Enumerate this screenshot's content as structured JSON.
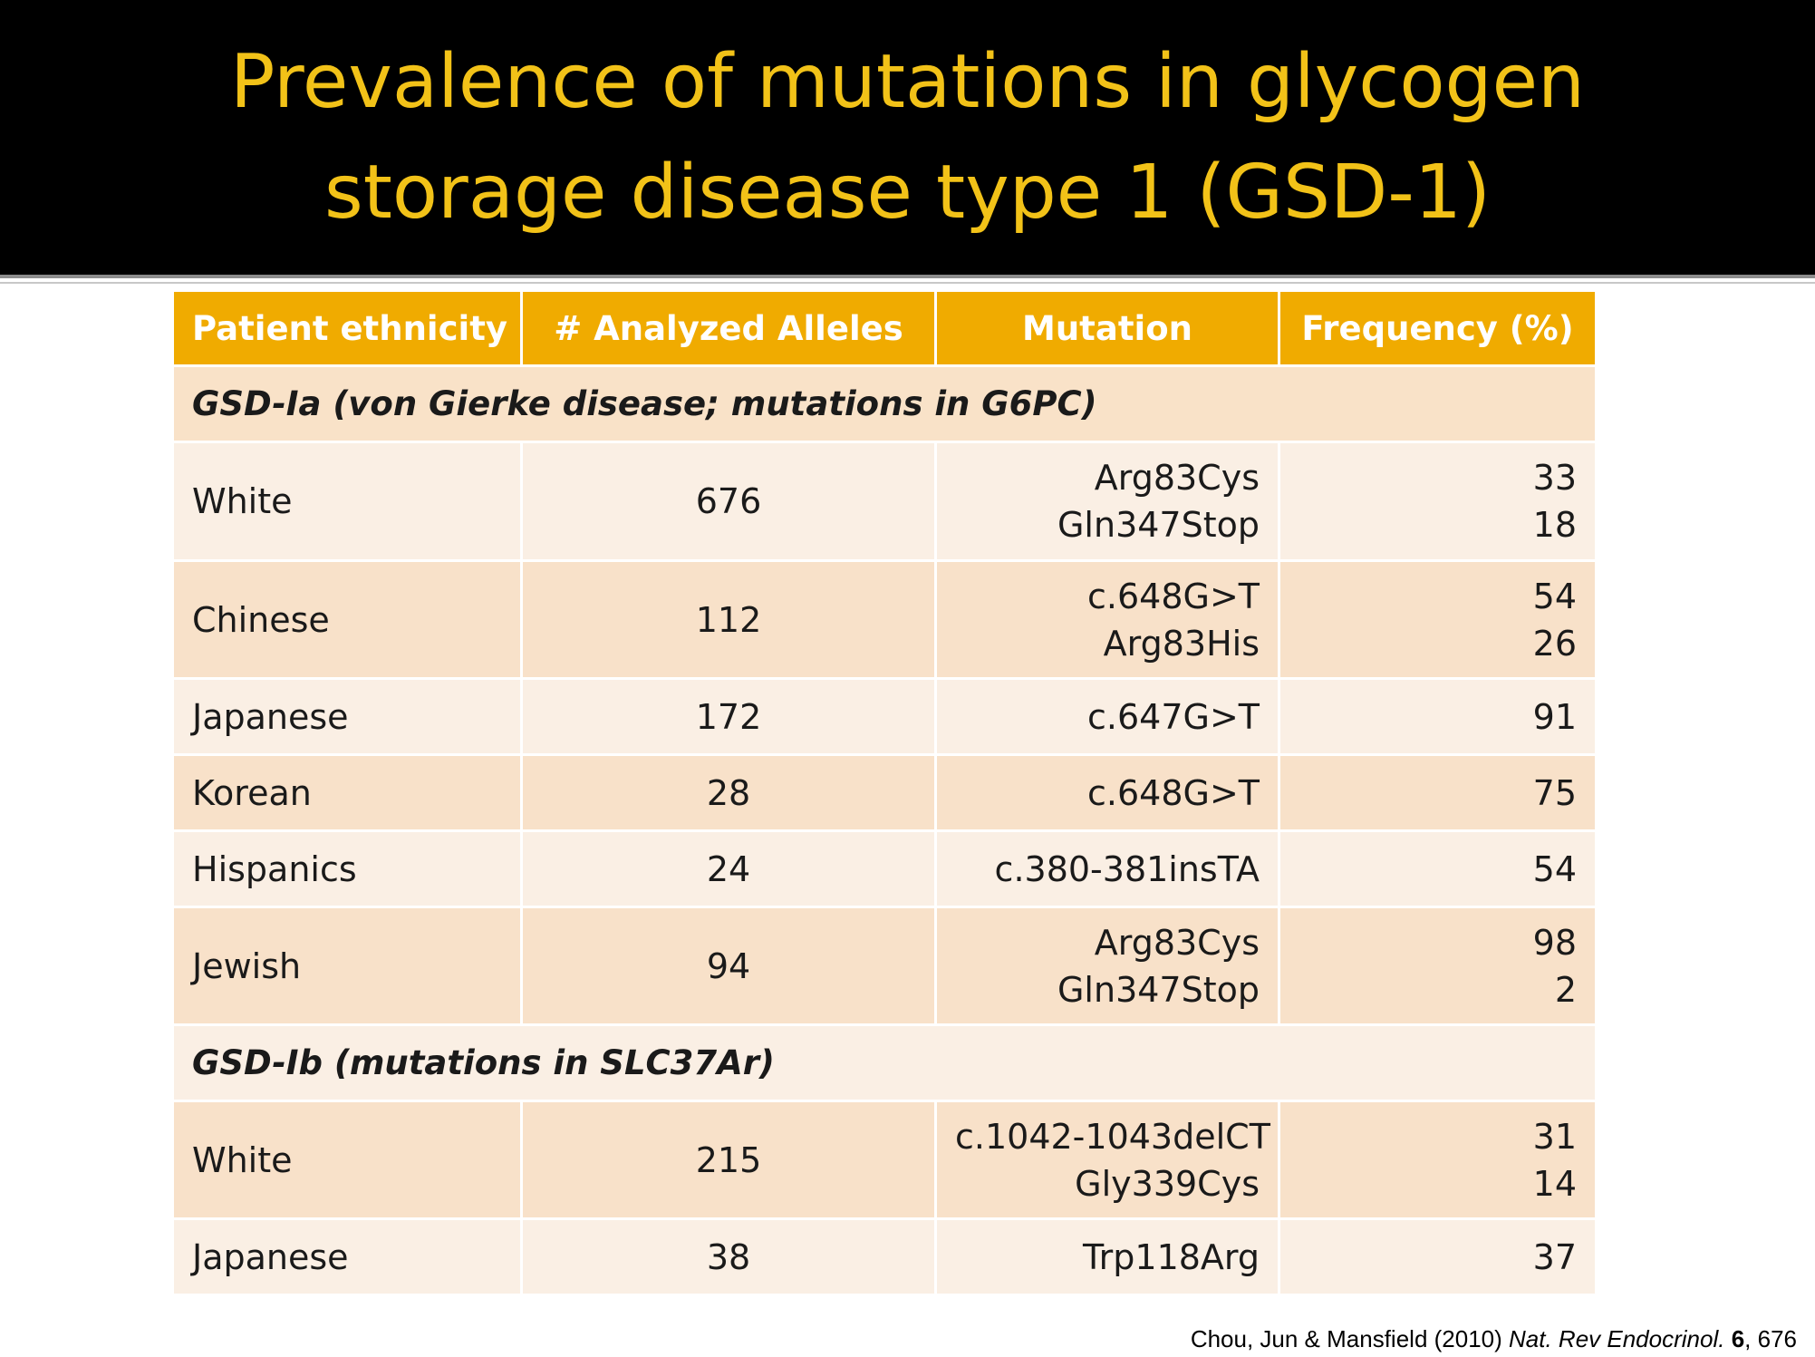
{
  "slide": {
    "title_line1": "Prevalence of mutations in glycogen",
    "title_line2": "storage disease type 1 (GSD-1)",
    "colors": {
      "title_bg": "#000000",
      "title_text": "#f2c218",
      "header_bg": "#f0ab00",
      "row_dark": "#f8e1c9",
      "row_light": "#faefe4"
    }
  },
  "table": {
    "headers": [
      "Patient ethnicity",
      "# Analyzed Alleles",
      "Mutation",
      "Frequency (%)"
    ],
    "section_a": "GSD-Ia (von Gierke disease; mutations in G6PC)",
    "rows_a": [
      {
        "ethnicity": "White",
        "alleles": "676",
        "mutations": [
          "Arg83Cys",
          "Gln347Stop"
        ],
        "frequencies": [
          "33",
          "18"
        ]
      },
      {
        "ethnicity": "Chinese",
        "alleles": "112",
        "mutations": [
          "c.648G>T",
          "Arg83His"
        ],
        "frequencies": [
          "54",
          "26"
        ]
      },
      {
        "ethnicity": "Japanese",
        "alleles": "172",
        "mutations": [
          "c.647G>T"
        ],
        "frequencies": [
          "91"
        ]
      },
      {
        "ethnicity": "Korean",
        "alleles": "28",
        "mutations": [
          "c.648G>T"
        ],
        "frequencies": [
          "75"
        ]
      },
      {
        "ethnicity": "Hispanics",
        "alleles": "24",
        "mutations": [
          "c.380-381insTA"
        ],
        "frequencies": [
          "54"
        ]
      },
      {
        "ethnicity": "Jewish",
        "alleles": "94",
        "mutations": [
          "Arg83Cys",
          "Gln347Stop"
        ],
        "frequencies": [
          "98",
          "2"
        ]
      }
    ],
    "section_b": "GSD-Ib (mutations in SLC37Ar)",
    "rows_b": [
      {
        "ethnicity": "White",
        "alleles": "215",
        "mutations": [
          "c.1042-1043delCT",
          "Gly339Cys"
        ],
        "frequencies": [
          "31",
          "14"
        ]
      },
      {
        "ethnicity": "Japanese",
        "alleles": "38",
        "mutations": [
          "Trp118Arg"
        ],
        "frequencies": [
          "37"
        ]
      }
    ]
  },
  "citation": {
    "authors": "Chou, Jun & Mansfield (2010) ",
    "journal": "Nat. Rev Endocrinol.",
    "volume": "6",
    "page": ", 676"
  }
}
